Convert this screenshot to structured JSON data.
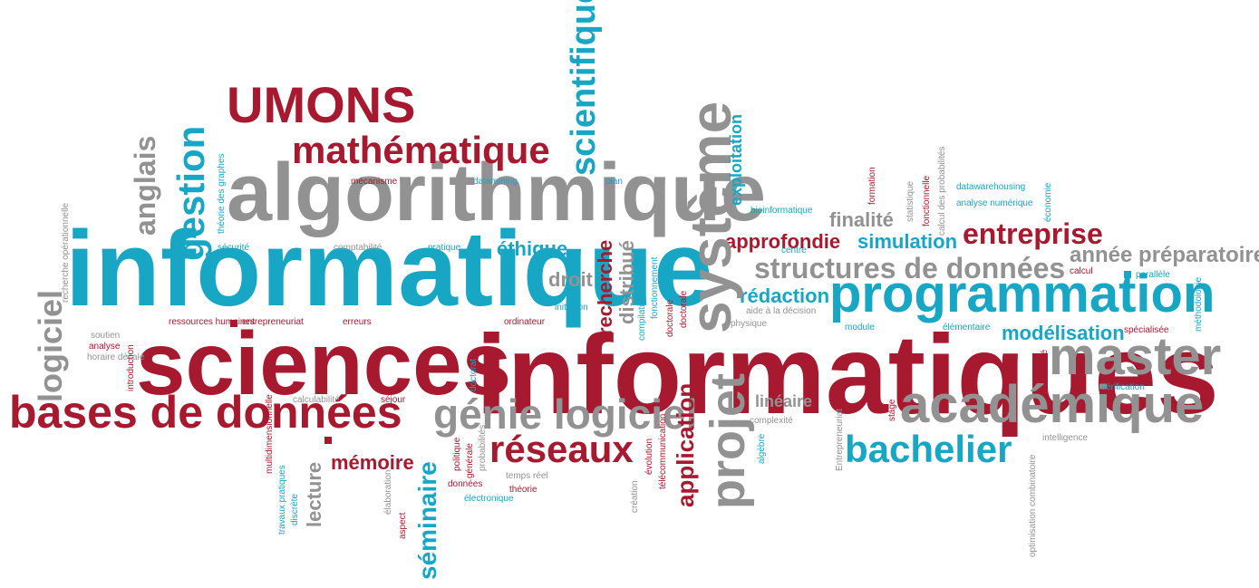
{
  "colors": {
    "red": "#a6192e",
    "blue": "#17a6c4",
    "gray": "#929292"
  },
  "words": [
    {
      "text": "informatiques",
      "color": "red",
      "size": 124
    },
    {
      "text": "informatique",
      "color": "blue",
      "size": 118
    },
    {
      "text": "sciences",
      "color": "red",
      "size": 98
    },
    {
      "text": "algorithmique",
      "color": "gray",
      "size": 90
    },
    {
      "text": "programmation",
      "color": "blue",
      "size": 58
    },
    {
      "text": "bases de données",
      "color": "red",
      "size": 50
    },
    {
      "text": "académique",
      "color": "gray",
      "size": 58
    },
    {
      "text": "master",
      "color": "gray",
      "size": 58
    },
    {
      "text": "système",
      "color": "gray",
      "size": 64
    },
    {
      "text": "UMONS",
      "color": "red",
      "size": 56
    },
    {
      "text": "génie logiciel",
      "color": "gray",
      "size": 46
    },
    {
      "text": "mathématique",
      "color": "red",
      "size": 42
    },
    {
      "text": "bachelier",
      "color": "blue",
      "size": 42
    },
    {
      "text": "projet",
      "color": "gray",
      "size": 54
    },
    {
      "text": "réseaux",
      "color": "red",
      "size": 42
    },
    {
      "text": "structures de données",
      "color": "gray",
      "size": 32
    },
    {
      "text": "entreprise",
      "color": "red",
      "size": 32
    },
    {
      "text": "scientifique",
      "color": "blue",
      "size": 38
    },
    {
      "text": "gestion",
      "color": "blue",
      "size": 42
    },
    {
      "text": "logiciel",
      "color": "gray",
      "size": 36
    },
    {
      "text": "anglais",
      "color": "gray",
      "size": 32
    },
    {
      "text": "séminaire",
      "color": "blue",
      "size": 28
    },
    {
      "text": "application",
      "color": "red",
      "size": 26
    },
    {
      "text": "année préparatoire",
      "color": "gray",
      "size": 24
    },
    {
      "text": "modélisation",
      "color": "blue",
      "size": 22
    },
    {
      "text": "simulation",
      "color": "blue",
      "size": 22
    },
    {
      "text": "approfondie",
      "color": "red",
      "size": 22
    },
    {
      "text": "finalité",
      "color": "gray",
      "size": 22
    },
    {
      "text": "éthique",
      "color": "blue",
      "size": 22
    },
    {
      "text": "droit",
      "color": "gray",
      "size": 22
    },
    {
      "text": "rédaction",
      "color": "blue",
      "size": 22
    },
    {
      "text": "mémoire",
      "color": "red",
      "size": 22
    },
    {
      "text": "lecture",
      "color": "gray",
      "size": 22
    },
    {
      "text": "linéaire",
      "color": "gray",
      "size": 18
    },
    {
      "text": "recherche",
      "color": "red",
      "size": 22
    },
    {
      "text": "distribué",
      "color": "gray",
      "size": 22
    },
    {
      "text": "exploitation",
      "color": "blue",
      "size": 18
    },
    {
      "text": "recherche opérationnelle",
      "color": "gray",
      "size": 10
    },
    {
      "text": "théorie des graphes",
      "color": "blue",
      "size": 10
    },
    {
      "text": "artificielle",
      "color": "red",
      "size": 10
    },
    {
      "text": "sécurité",
      "color": "blue",
      "size": 10
    },
    {
      "text": "mécanisme",
      "color": "red",
      "size": 10
    },
    {
      "text": "datamining",
      "color": "blue",
      "size": 10
    },
    {
      "text": "plan",
      "color": "blue",
      "size": 10
    },
    {
      "text": "comptabilité",
      "color": "gray",
      "size": 10
    },
    {
      "text": "pratique",
      "color": "blue",
      "size": 10
    },
    {
      "text": "initiation",
      "color": "blue",
      "size": 10
    },
    {
      "text": "ordinateur",
      "color": "red",
      "size": 10
    },
    {
      "text": "ressources humaines",
      "color": "red",
      "size": 10
    },
    {
      "text": "entrepreneuriat",
      "color": "red",
      "size": 10
    },
    {
      "text": "erreurs",
      "color": "red",
      "size": 10
    },
    {
      "text": "soutien",
      "color": "gray",
      "size": 10
    },
    {
      "text": "analyse",
      "color": "red",
      "size": 10
    },
    {
      "text": "horaire décalé",
      "color": "gray",
      "size": 10
    },
    {
      "text": "introduction",
      "color": "red",
      "size": 10
    },
    {
      "text": "doctorat",
      "color": "blue",
      "size": 10
    },
    {
      "text": "calculabilité",
      "color": "gray",
      "size": 10
    },
    {
      "text": "séjour",
      "color": "red",
      "size": 10
    },
    {
      "text": "multidimensionnelle",
      "color": "red",
      "size": 10
    },
    {
      "text": "travaux pratiques",
      "color": "blue",
      "size": 10
    },
    {
      "text": "discrète",
      "color": "blue",
      "size": 10
    },
    {
      "text": "élaboration",
      "color": "gray",
      "size": 10
    },
    {
      "text": "aspect",
      "color": "red",
      "size": 10
    },
    {
      "text": "politique",
      "color": "red",
      "size": 10
    },
    {
      "text": "générale",
      "color": "red",
      "size": 10
    },
    {
      "text": "probabilités",
      "color": "gray",
      "size": 10
    },
    {
      "text": "données",
      "color": "red",
      "size": 10
    },
    {
      "text": "électronique",
      "color": "blue",
      "size": 10
    },
    {
      "text": "temps réel",
      "color": "gray",
      "size": 10
    },
    {
      "text": "théorie",
      "color": "red",
      "size": 10
    },
    {
      "text": "création",
      "color": "gray",
      "size": 10
    },
    {
      "text": "évolution",
      "color": "red",
      "size": 10
    },
    {
      "text": "télécommunication",
      "color": "red",
      "size": 10
    },
    {
      "text": "compilation",
      "color": "blue",
      "size": 10
    },
    {
      "text": "fonctionnement",
      "color": "blue",
      "size": 10
    },
    {
      "text": "doctorale",
      "color": "red",
      "size": 10
    },
    {
      "text": "bioinformatique",
      "color": "blue",
      "size": 10
    },
    {
      "text": "centre",
      "color": "blue",
      "size": 10
    },
    {
      "text": "aide à la décision",
      "color": "gray",
      "size": 10
    },
    {
      "text": "physique",
      "color": "gray",
      "size": 10
    },
    {
      "text": "complexité",
      "color": "gray",
      "size": 10
    },
    {
      "text": "algèbre",
      "color": "blue",
      "size": 10
    },
    {
      "text": "Entrepreneuriat",
      "color": "gray",
      "size": 10
    },
    {
      "text": "stage",
      "color": "red",
      "size": 10
    },
    {
      "text": "formation",
      "color": "red",
      "size": 10
    },
    {
      "text": "statistique",
      "color": "gray",
      "size": 10
    },
    {
      "text": "fonctionnelle",
      "color": "red",
      "size": 10
    },
    {
      "text": "calcul des probabilités",
      "color": "gray",
      "size": 10
    },
    {
      "text": "datawarehousing",
      "color": "blue",
      "size": 10
    },
    {
      "text": "analyse numérique",
      "color": "blue",
      "size": 10
    },
    {
      "text": "économie",
      "color": "blue",
      "size": 10
    },
    {
      "text": "calcul",
      "color": "red",
      "size": 10
    },
    {
      "text": "parallèle",
      "color": "blue",
      "size": 10
    },
    {
      "text": "méthodologie",
      "color": "blue",
      "size": 10
    },
    {
      "text": "module",
      "color": "blue",
      "size": 10
    },
    {
      "text": "élémentaire",
      "color": "blue",
      "size": 10
    },
    {
      "text": "spécialisée",
      "color": "red",
      "size": 10
    },
    {
      "text": "avancé",
      "color": "red",
      "size": 10
    },
    {
      "text": "vérification",
      "color": "blue",
      "size": 10
    },
    {
      "text": "intelligence",
      "color": "gray",
      "size": 10
    },
    {
      "text": "optimisation combinatoire",
      "color": "gray",
      "size": 10
    }
  ]
}
